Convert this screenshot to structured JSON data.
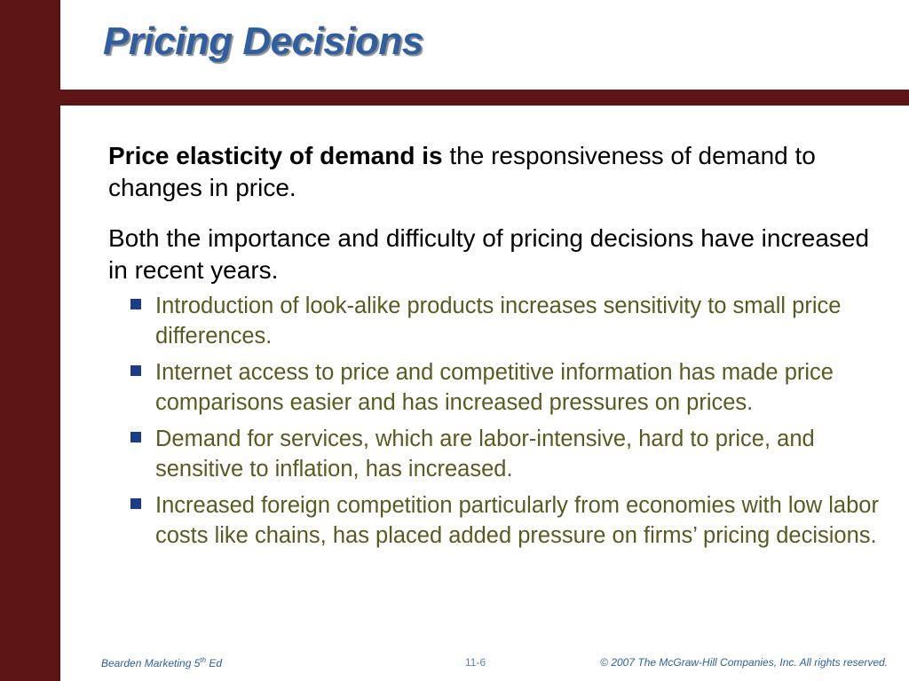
{
  "slide": {
    "title": "Pricing Decisions",
    "definition": {
      "term": "Price elasticity of demand is",
      "text": " the responsiveness of demand to changes in price."
    },
    "statement": "Both the importance and difficulty of pricing decisions have increased in recent years.",
    "bullets": [
      "Introduction of look-alike products increases sensitivity to small price differences.",
      "Internet access to price and competitive information has made price comparisons easier and has increased pressures on prices.",
      "Demand for services, which are labor-intensive, hard to price, and sensitive to inflation, has increased.",
      "Increased foreign competition particularly from economies with low labor costs like chains, has placed added pressure on firms’ pricing decisions."
    ]
  },
  "footer": {
    "book_prefix": "Bearden Marketing 5",
    "book_sup": "th",
    "book_suffix": " Ed",
    "slide_number": "11-6",
    "copyright": "© 2007  The McGraw-Hill Companies, Inc.  All rights reserved."
  },
  "colors": {
    "frame": "#5c1414",
    "title": "#2e5fa3",
    "bullet_text": "#5a5a1f",
    "bullet_marker": "#1a3c8c"
  }
}
